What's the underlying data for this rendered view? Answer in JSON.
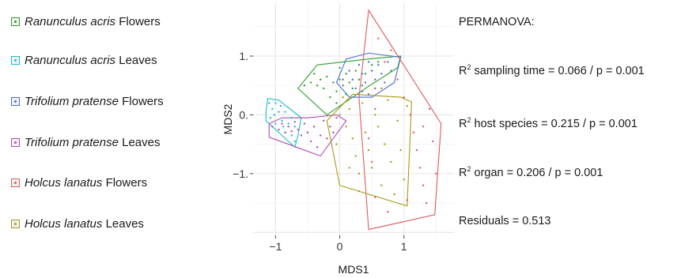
{
  "chart_data": {
    "type": "scatter",
    "xlabel": "MDS1",
    "ylabel": "MDS2",
    "xlim": [
      -1.35,
      1.78
    ],
    "ylim": [
      -2.05,
      1.9
    ],
    "x_ticks": [
      {
        "v": -1,
        "label": "−1"
      },
      {
        "v": 0,
        "label": "0"
      },
      {
        "v": 1,
        "label": "1"
      }
    ],
    "y_ticks": [
      {
        "v": -1,
        "label": "−1."
      },
      {
        "v": 0,
        "label": "0."
      },
      {
        "v": 1,
        "label": "1."
      }
    ],
    "grid": true,
    "legend_position": "left",
    "series": [
      {
        "name": "Ranunculus acris Flowers",
        "species": "Ranunculus acris",
        "organ": "Flowers",
        "color": "#2ca02c",
        "hull": [
          [
            -0.65,
            0.45
          ],
          [
            -0.35,
            0.85
          ],
          [
            0.45,
            0.95
          ],
          [
            0.95,
            1.0
          ],
          [
            0.9,
            0.8
          ],
          [
            0.4,
            0.45
          ],
          [
            -0.2,
            0.0
          ]
        ],
        "points": [
          [
            -0.55,
            0.5
          ],
          [
            -0.45,
            0.55
          ],
          [
            -0.35,
            0.5
          ],
          [
            -0.3,
            0.6
          ],
          [
            -0.25,
            0.45
          ],
          [
            -0.2,
            0.65
          ],
          [
            -0.1,
            0.55
          ],
          [
            -0.05,
            0.4
          ],
          [
            0.0,
            0.6
          ],
          [
            0.05,
            0.5
          ],
          [
            0.1,
            0.7
          ],
          [
            0.15,
            0.55
          ],
          [
            0.2,
            0.45
          ],
          [
            0.25,
            0.75
          ],
          [
            0.3,
            0.6
          ],
          [
            0.35,
            0.5
          ],
          [
            -0.15,
            0.3
          ],
          [
            -0.05,
            0.2
          ],
          [
            0.0,
            0.8
          ],
          [
            0.1,
            0.35
          ],
          [
            0.4,
            0.7
          ],
          [
            0.5,
            0.85
          ],
          [
            0.6,
            0.9
          ],
          [
            -0.4,
            0.7
          ]
        ]
      },
      {
        "name": "Ranunculus acris Leaves",
        "species": "Ranunculus acris",
        "organ": "Leaves",
        "color": "#17becf",
        "hull": [
          [
            -1.15,
            0.05
          ],
          [
            -1.12,
            0.28
          ],
          [
            -0.95,
            0.25
          ],
          [
            -0.6,
            -0.05
          ],
          [
            -0.65,
            -0.35
          ],
          [
            -0.7,
            -0.55
          ],
          [
            -0.95,
            -0.3
          ],
          [
            -1.15,
            -0.1
          ]
        ],
        "points": [
          [
            -1.1,
            0.2
          ],
          [
            -1.05,
            0.1
          ],
          [
            -1.0,
            0.2
          ],
          [
            -1.08,
            -0.05
          ],
          [
            -0.95,
            0.05
          ],
          [
            -0.9,
            -0.1
          ],
          [
            -0.85,
            0.05
          ],
          [
            -0.8,
            -0.15
          ],
          [
            -0.75,
            -0.05
          ],
          [
            -0.7,
            -0.2
          ],
          [
            -1.0,
            -0.15
          ],
          [
            -0.95,
            -0.25
          ],
          [
            -0.85,
            -0.3
          ],
          [
            -0.75,
            -0.35
          ],
          [
            -0.7,
            -0.45
          ],
          [
            -1.02,
            0.0
          ],
          [
            -0.92,
            0.15
          ],
          [
            -0.88,
            -0.2
          ]
        ]
      },
      {
        "name": "Trifolium pratense Flowers",
        "species": "Trifolium pratense",
        "organ": "Flowers",
        "color": "#4a6fd4",
        "hull": [
          [
            -0.05,
            0.55
          ],
          [
            0.1,
            0.95
          ],
          [
            0.45,
            1.05
          ],
          [
            0.95,
            0.98
          ],
          [
            0.85,
            0.55
          ],
          [
            0.5,
            0.3
          ],
          [
            0.15,
            0.3
          ]
        ],
        "points": [
          [
            0.05,
            0.6
          ],
          [
            0.15,
            0.75
          ],
          [
            0.2,
            0.6
          ],
          [
            0.3,
            0.85
          ],
          [
            0.35,
            0.7
          ],
          [
            0.4,
            0.55
          ],
          [
            0.45,
            0.9
          ],
          [
            0.5,
            0.75
          ],
          [
            0.55,
            0.6
          ],
          [
            0.6,
            0.85
          ],
          [
            0.65,
            0.7
          ],
          [
            0.7,
            0.55
          ],
          [
            0.75,
            0.9
          ],
          [
            0.8,
            0.75
          ],
          [
            0.25,
            0.45
          ],
          [
            0.35,
            0.4
          ],
          [
            0.45,
            0.35
          ],
          [
            0.55,
            0.45
          ]
        ]
      },
      {
        "name": "Trifolium pratense Leaves",
        "species": "Trifolium pratense",
        "organ": "Leaves",
        "color": "#b44cb5",
        "hull": [
          [
            -1.1,
            -0.15
          ],
          [
            -0.9,
            -0.05
          ],
          [
            -0.5,
            -0.05
          ],
          [
            -0.05,
            0.0
          ],
          [
            0.1,
            -0.1
          ],
          [
            -0.3,
            -0.7
          ],
          [
            -1.1,
            -0.38
          ]
        ],
        "points": [
          [
            -1.05,
            -0.2
          ],
          [
            -0.95,
            -0.25
          ],
          [
            -0.9,
            -0.15
          ],
          [
            -0.85,
            -0.3
          ],
          [
            -0.8,
            -0.2
          ],
          [
            -0.75,
            -0.28
          ],
          [
            -0.7,
            -0.12
          ],
          [
            -0.65,
            -0.25
          ],
          [
            -0.6,
            -0.35
          ],
          [
            -0.55,
            -0.15
          ],
          [
            -0.5,
            -0.3
          ],
          [
            -0.45,
            -0.45
          ],
          [
            -0.4,
            -0.2
          ],
          [
            -0.35,
            -0.55
          ],
          [
            -0.3,
            -0.35
          ],
          [
            -0.25,
            -0.1
          ],
          [
            -0.2,
            -0.4
          ],
          [
            -0.15,
            -0.2
          ],
          [
            -0.1,
            -0.3
          ],
          [
            -0.05,
            -0.05
          ]
        ]
      },
      {
        "name": "Holcus lanatus Flowers",
        "species": "Holcus lanatus",
        "organ": "Flowers",
        "color": "#e05a5a",
        "hull": [
          [
            0.45,
            1.78
          ],
          [
            1.58,
            -0.15
          ],
          [
            1.48,
            -1.7
          ],
          [
            0.45,
            -1.95
          ],
          [
            0.3,
            0.3
          ]
        ],
        "points": [
          [
            0.6,
            1.3
          ],
          [
            0.7,
            0.9
          ],
          [
            0.8,
            1.1
          ],
          [
            0.9,
            0.6
          ],
          [
            1.0,
            0.3
          ],
          [
            1.1,
            0.0
          ],
          [
            1.15,
            -0.3
          ],
          [
            1.2,
            -0.6
          ],
          [
            1.25,
            -0.9
          ],
          [
            1.3,
            -1.2
          ],
          [
            1.35,
            -1.5
          ],
          [
            1.45,
            -0.45
          ],
          [
            1.5,
            -1.0
          ],
          [
            1.4,
            0.1
          ],
          [
            1.05,
            -1.45
          ],
          [
            0.75,
            -1.65
          ],
          [
            0.55,
            -1.4
          ],
          [
            0.5,
            -0.8
          ],
          [
            0.45,
            -0.4
          ],
          [
            0.55,
            0.1
          ],
          [
            0.65,
            0.45
          ],
          [
            1.3,
            -0.2
          ]
        ]
      },
      {
        "name": "Holcus lanatus Leaves",
        "species": "Holcus lanatus",
        "organ": "Leaves",
        "color": "#a89a14",
        "hull": [
          [
            -0.2,
            -0.1
          ],
          [
            0.2,
            0.35
          ],
          [
            0.95,
            0.3
          ],
          [
            1.12,
            0.22
          ],
          [
            1.05,
            -1.55
          ],
          [
            0.0,
            -1.2
          ]
        ],
        "points": [
          [
            0.0,
            0.0
          ],
          [
            0.1,
            -0.2
          ],
          [
            0.15,
            0.1
          ],
          [
            0.2,
            -0.4
          ],
          [
            0.25,
            -0.7
          ],
          [
            0.3,
            -1.0
          ],
          [
            0.35,
            0.2
          ],
          [
            0.4,
            -0.3
          ],
          [
            0.45,
            -0.6
          ],
          [
            0.5,
            -0.9
          ],
          [
            0.55,
            0.0
          ],
          [
            0.6,
            -0.2
          ],
          [
            0.65,
            -1.2
          ],
          [
            0.7,
            -0.5
          ],
          [
            0.75,
            0.25
          ],
          [
            0.8,
            -0.8
          ],
          [
            0.85,
            -1.35
          ],
          [
            0.9,
            -0.1
          ],
          [
            0.95,
            -0.6
          ],
          [
            1.0,
            -1.1
          ],
          [
            1.05,
            0.15
          ],
          [
            0.3,
            -1.3
          ],
          [
            0.15,
            -0.9
          ],
          [
            -0.05,
            -0.5
          ],
          [
            0.05,
            0.3
          ]
        ]
      }
    ]
  },
  "permanova": {
    "heading": "PERMANOVA:",
    "sampling_time": {
      "prefix": "R",
      "sup": "2",
      "text": " sampling time = 0.066 / p = 0.001"
    },
    "host_species": {
      "prefix": "R",
      "sup": "2",
      "text": " host species = 0.215 / p = 0.001"
    },
    "organ": {
      "prefix": "R",
      "sup": "2",
      "text": " organ = 0.206 / p = 0.001"
    },
    "residuals": "Residuals = 0.513"
  }
}
